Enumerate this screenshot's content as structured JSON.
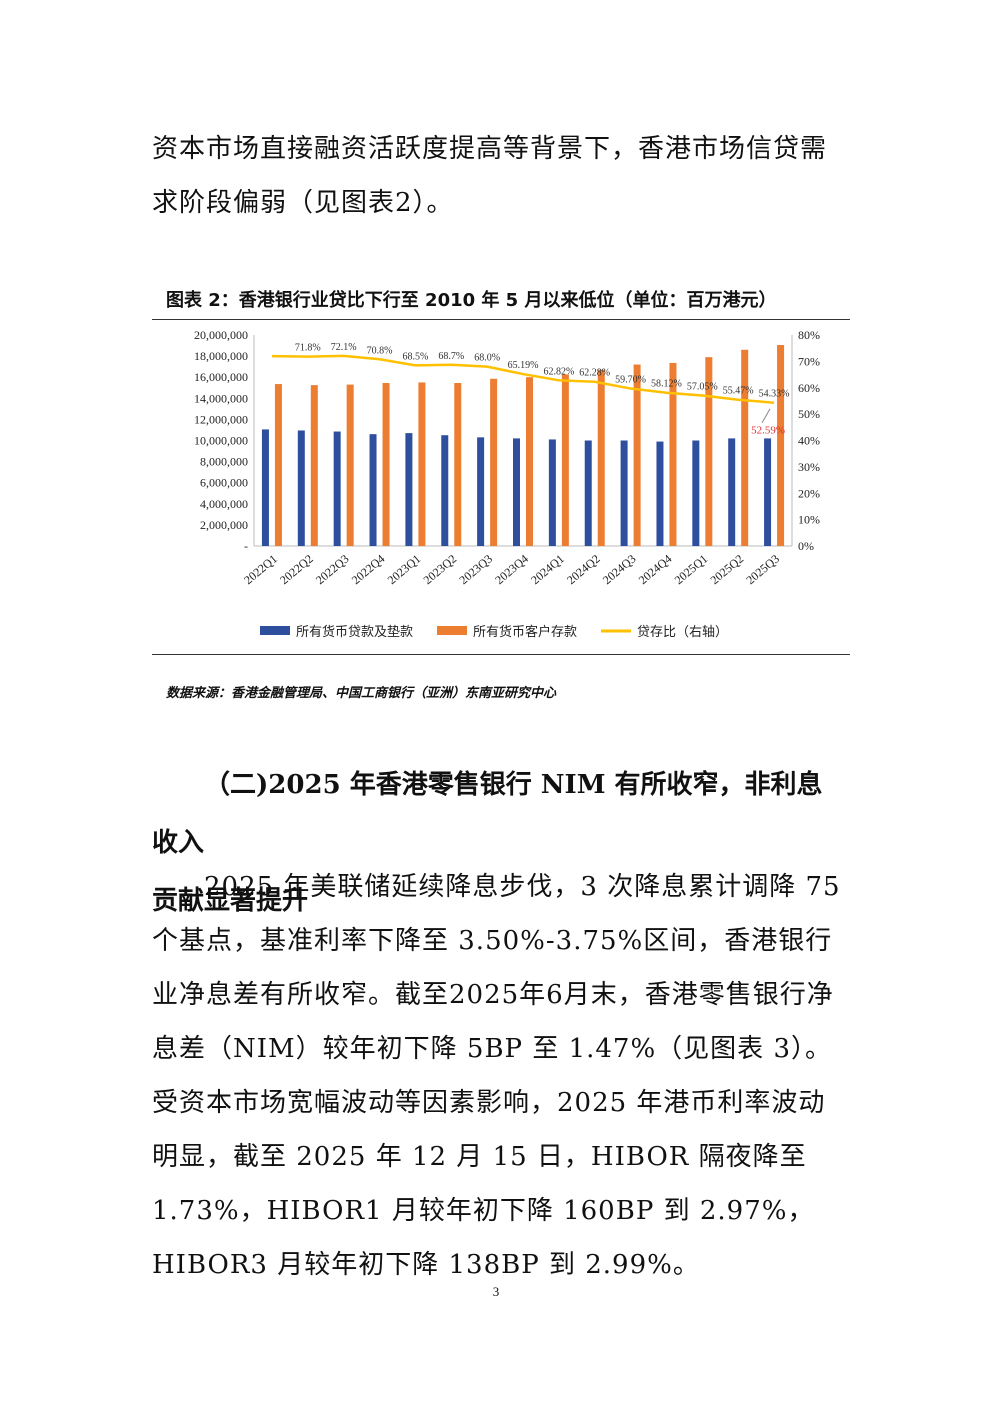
{
  "intro": {
    "text": "资本市场直接融资活跃度提高等背景下，香港市场信贷需求阶段偏弱（见图表2）。"
  },
  "figure": {
    "title": "图表 2：香港银行业贷比下行至 2010 年 5 月以来低位（单位：百万港元）",
    "source": "数据来源：香港金融管理局、中国工商银行（亚洲）东南亚研究中心"
  },
  "chart_data": {
    "type": "bar",
    "categories": [
      "2022Q1",
      "2022Q2",
      "2022Q3",
      "2022Q4",
      "2023Q1",
      "2023Q2",
      "2023Q3",
      "2023Q4",
      "2024Q1",
      "2024Q2",
      "2024Q3",
      "2024Q4",
      "2025Q1",
      "2025Q2",
      "2025Q3"
    ],
    "series": [
      {
        "name": "所有货币贷款及垫款",
        "kind": "bar",
        "axis": "left",
        "color": "#2E4E9E",
        "values": [
          11050000,
          10950000,
          10850000,
          10600000,
          10700000,
          10500000,
          10300000,
          10200000,
          10100000,
          10000000,
          10000000,
          9900000,
          10000000,
          10200000,
          10200000
        ]
      },
      {
        "name": "所有货币客户存款",
        "kind": "bar",
        "axis": "left",
        "color": "#ED7D31",
        "values": [
          15350000,
          15250000,
          15300000,
          15450000,
          15500000,
          15450000,
          15850000,
          16000000,
          16250000,
          16700000,
          17200000,
          17350000,
          17900000,
          18600000,
          19050000
        ]
      },
      {
        "name": "贷存比（右轴）",
        "kind": "line",
        "axis": "right",
        "color": "#FFC000",
        "values": [
          72.0,
          71.8,
          72.1,
          70.8,
          68.5,
          68.7,
          68.0,
          65.19,
          62.82,
          62.28,
          59.7,
          58.12,
          57.05,
          55.47,
          54.33
        ]
      }
    ],
    "line_labels": [
      "71.8%",
      "72.1%",
      "70.8%",
      "68.5%",
      "68.7%",
      "68.0%",
      "65.19%",
      "62.82%",
      "62.28%",
      "59.70%",
      "58.12%",
      "57.05%",
      "55.47%",
      "54.33%"
    ],
    "annotation": {
      "text": "52.59%",
      "color": "#E03030"
    },
    "y_left": {
      "ticks": [
        "20,000,000",
        "18,000,000",
        "16,000,000",
        "14,000,000",
        "12,000,000",
        "10,000,000",
        "8,000,000",
        "6,000,000",
        "4,000,000",
        "2,000,000",
        "-"
      ],
      "ylim": [
        0,
        20000000
      ]
    },
    "y_right": {
      "ticks": [
        "80%",
        "70%",
        "60%",
        "50%",
        "40%",
        "30%",
        "20%",
        "10%",
        "0%"
      ],
      "ylim": [
        0,
        80
      ]
    },
    "legend_position": "bottom"
  },
  "section": {
    "heading_line1": "（二)2025 年香港零售银行 NIM 有所收窄，非利息收入",
    "heading_line2": "贡献显著提升",
    "body": "2025 年美联储延续降息步伐，3 次降息累计调降 75 个基点，基准利率下降至 3.50%-3.75%区间，香港银行业净息差有所收窄。截至2025年6月末，香港零售银行净息差（NIM）较年初下降 5BP 至 1.47%（见图表 3）。受资本市场宽幅波动等因素影响，2025 年港币利率波动明显，截至 2025 年 12 月 15 日，HIBOR 隔夜降至 1.73%，HIBOR1 月较年初下降 160BP 到 2.97%，HIBOR3 月较年初下降 138BP 到 2.99%。"
  },
  "page_number": "3"
}
